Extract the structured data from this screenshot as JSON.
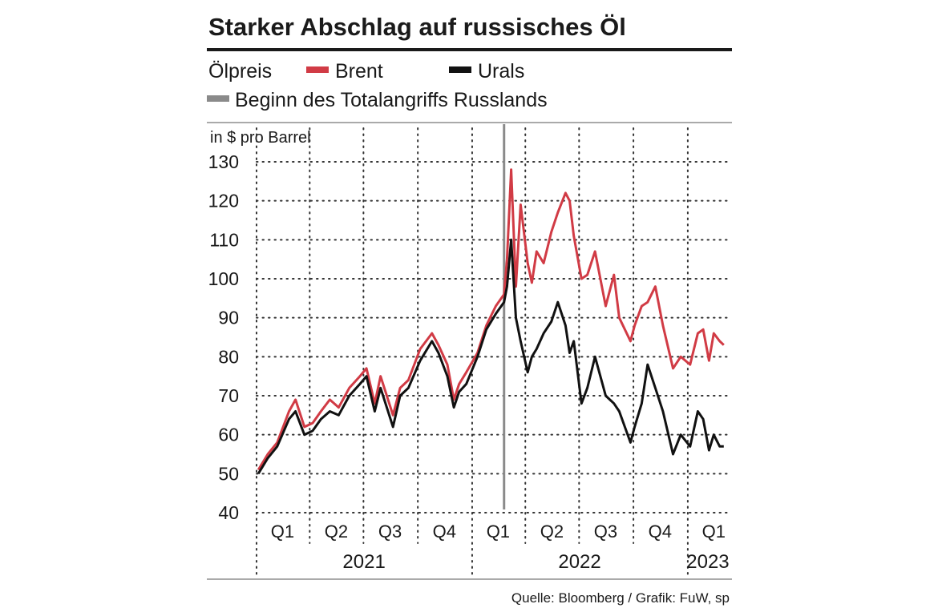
{
  "chart_data": {
    "type": "line",
    "title": "Starker Abschlag auf russisches Öl",
    "legend": {
      "label": "Ölpreis",
      "placement": "top-left",
      "entries": [
        {
          "name": "Brent",
          "color": "#d13b45"
        },
        {
          "name": "Urals",
          "color": "#111111"
        },
        {
          "name": "Beginn des Totalangriffs Russlands",
          "color": "#8a8a8a"
        }
      ]
    },
    "ylabel": "in $ pro Barrel",
    "ylim": [
      40,
      130
    ],
    "yticks": [
      "130",
      "120",
      "110",
      "100",
      "90",
      "80",
      "70",
      "60",
      "50",
      "40"
    ],
    "grid": "dotted",
    "xlim": [
      "2021-01-01",
      "2023-03-10"
    ],
    "quarter_labels": [
      {
        "label": "Q1",
        "date": "2021-02-14"
      },
      {
        "label": "Q2",
        "date": "2021-05-16"
      },
      {
        "label": "Q3",
        "date": "2021-08-15"
      },
      {
        "label": "Q4",
        "date": "2021-11-15"
      },
      {
        "label": "Q1",
        "date": "2022-02-14"
      },
      {
        "label": "Q2",
        "date": "2022-05-16"
      },
      {
        "label": "Q3",
        "date": "2022-08-15"
      },
      {
        "label": "Q4",
        "date": "2022-11-15"
      },
      {
        "label": "Q1",
        "date": "2023-02-14"
      }
    ],
    "year_labels": [
      {
        "label": "2021",
        "date": "2021-07-02"
      },
      {
        "label": "2022",
        "date": "2022-07-02"
      },
      {
        "label": "2023",
        "date": "2023-02-04"
      }
    ],
    "event_line": {
      "name": "Beginn des Totalangriffs Russlands",
      "date": "2022-02-24",
      "color": "#8a8a8a"
    },
    "series": [
      {
        "name": "Brent",
        "color": "#d13b45",
        "x": [
          "2021-01-04",
          "2021-01-20",
          "2021-02-05",
          "2021-02-25",
          "2021-03-08",
          "2021-03-23",
          "2021-04-06",
          "2021-04-20",
          "2021-05-05",
          "2021-05-20",
          "2021-06-07",
          "2021-06-25",
          "2021-07-06",
          "2021-07-20",
          "2021-07-30",
          "2021-08-20",
          "2021-09-01",
          "2021-09-15",
          "2021-10-05",
          "2021-10-25",
          "2021-11-05",
          "2021-11-20",
          "2021-12-01",
          "2021-12-10",
          "2021-12-22",
          "2022-01-10",
          "2022-01-25",
          "2022-02-10",
          "2022-02-24",
          "2022-03-01",
          "2022-03-08",
          "2022-03-16",
          "2022-03-24",
          "2022-04-05",
          "2022-04-12",
          "2022-04-20",
          "2022-05-02",
          "2022-05-15",
          "2022-05-26",
          "2022-06-08",
          "2022-06-15",
          "2022-06-22",
          "2022-07-05",
          "2022-07-15",
          "2022-07-28",
          "2022-08-15",
          "2022-08-29",
          "2022-09-07",
          "2022-09-26",
          "2022-10-03",
          "2022-10-15",
          "2022-10-25",
          "2022-11-07",
          "2022-11-20",
          "2022-12-07",
          "2022-12-20",
          "2023-01-05",
          "2023-01-18",
          "2023-01-27",
          "2023-02-06",
          "2023-02-14",
          "2023-02-24",
          "2023-03-03"
        ],
        "values": [
          51,
          55,
          58,
          66,
          69,
          62,
          63,
          66,
          69,
          67,
          72,
          75,
          77,
          68,
          75,
          65,
          72,
          74,
          82,
          86,
          83,
          78,
          69,
          73,
          76,
          81,
          88,
          93,
          96,
          105,
          128,
          98,
          119,
          104,
          99,
          107,
          104,
          112,
          117,
          122,
          120,
          111,
          100,
          101,
          107,
          93,
          101,
          90,
          84,
          88,
          93,
          94,
          98,
          88,
          77,
          80,
          78,
          86,
          87,
          79,
          86,
          84,
          83
        ]
      },
      {
        "name": "Urals",
        "color": "#111111",
        "x": [
          "2021-01-04",
          "2021-01-20",
          "2021-02-05",
          "2021-02-25",
          "2021-03-08",
          "2021-03-23",
          "2021-04-06",
          "2021-04-20",
          "2021-05-05",
          "2021-05-20",
          "2021-06-07",
          "2021-06-25",
          "2021-07-06",
          "2021-07-20",
          "2021-07-30",
          "2021-08-20",
          "2021-09-01",
          "2021-09-15",
          "2021-10-05",
          "2021-10-25",
          "2021-11-05",
          "2021-11-20",
          "2021-12-01",
          "2021-12-10",
          "2021-12-22",
          "2022-01-10",
          "2022-01-25",
          "2022-02-10",
          "2022-02-24",
          "2022-03-01",
          "2022-03-08",
          "2022-03-16",
          "2022-03-24",
          "2022-04-05",
          "2022-04-12",
          "2022-04-20",
          "2022-05-02",
          "2022-05-15",
          "2022-05-26",
          "2022-06-08",
          "2022-06-15",
          "2022-06-22",
          "2022-07-05",
          "2022-07-15",
          "2022-07-28",
          "2022-08-15",
          "2022-08-29",
          "2022-09-07",
          "2022-09-26",
          "2022-10-03",
          "2022-10-15",
          "2022-10-25",
          "2022-11-07",
          "2022-11-20",
          "2022-12-07",
          "2022-12-20",
          "2023-01-05",
          "2023-01-18",
          "2023-01-27",
          "2023-02-06",
          "2023-02-14",
          "2023-02-24",
          "2023-03-03"
        ],
        "values": [
          50,
          54,
          57,
          64,
          66,
          60,
          61,
          64,
          66,
          65,
          70,
          73,
          75,
          66,
          72,
          62,
          70,
          72,
          79,
          84,
          81,
          75,
          67,
          71,
          73,
          80,
          87,
          91,
          94,
          98,
          110,
          90,
          84,
          76,
          80,
          82,
          86,
          89,
          94,
          88,
          81,
          84,
          68,
          72,
          80,
          70,
          68,
          66,
          58,
          62,
          68,
          78,
          72,
          66,
          55,
          60,
          57,
          66,
          64,
          56,
          60,
          57,
          57
        ]
      }
    ]
  },
  "source": "Quelle: Bloomberg / Grafik: FuW, sp"
}
